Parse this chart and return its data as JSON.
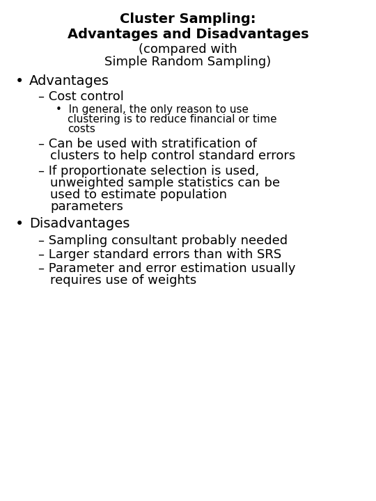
{
  "background_color": "#ffffff",
  "title_line1": "Cluster Sampling:",
  "title_line2": "Advantages and Disadvantages",
  "title_line3": "(compared with",
  "title_line4": "Simple Random Sampling)",
  "title_fontsize": 14,
  "subtitle_fontsize": 13,
  "bullet_fontsize": 14,
  "sub_fontsize": 13,
  "subsub_fontsize": 11,
  "bullet1": "Advantages",
  "sub1_1": "Cost control",
  "sub1_1_sub1_l1": "In general, the only reason to use",
  "sub1_1_sub1_l2": "clustering is to reduce financial or time",
  "sub1_1_sub1_l3": "costs",
  "sub1_2_l1": "Can be used with stratification of",
  "sub1_2_l2": "clusters to help control standard errors",
  "sub1_3_l1": "If proportionate selection is used,",
  "sub1_3_l2": "unweighted sample statistics can be",
  "sub1_3_l3": "used to estimate population",
  "sub1_3_l4": "parameters",
  "bullet2": "Disadvantages",
  "sub2_1": "Sampling consultant probably needed",
  "sub2_2": "Larger standard errors than with SRS",
  "sub2_3_l1": "Parameter and error estimation usually",
  "sub2_3_l2": "requires use of weights",
  "font_family": "DejaVu Sans",
  "text_color": "#000000"
}
